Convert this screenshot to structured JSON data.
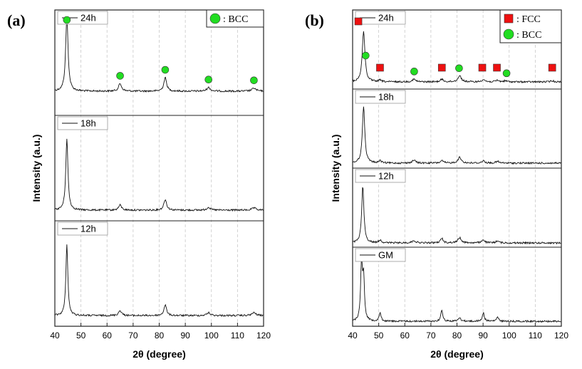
{
  "chart_data": [
    {
      "type": "line",
      "panel_label": "(a)",
      "xlabel": "2θ (degree)",
      "ylabel": "Intensity (a.u.)",
      "xlim": [
        40,
        120
      ],
      "xticks": [
        40,
        50,
        60,
        70,
        80,
        90,
        100,
        110,
        120
      ],
      "grid_x": true,
      "series": [
        {
          "name": "24h",
          "peaks": [
            [
              44.6,
              1.0,
              0.55
            ],
            [
              65.0,
              0.1,
              0.7
            ],
            [
              82.3,
              0.18,
              0.65
            ],
            [
              98.9,
              0.05,
              0.8
            ],
            [
              116.3,
              0.04,
              0.9
            ]
          ]
        },
        {
          "name": "18h",
          "peaks": [
            [
              44.6,
              1.0,
              0.5
            ],
            [
              65.0,
              0.07,
              0.7
            ],
            [
              82.3,
              0.15,
              0.65
            ],
            [
              98.9,
              0.04,
              0.8
            ],
            [
              116.3,
              0.03,
              0.9
            ]
          ]
        },
        {
          "name": "12h",
          "peaks": [
            [
              44.6,
              1.0,
              0.45
            ],
            [
              65.0,
              0.07,
              0.7
            ],
            [
              82.3,
              0.15,
              0.6
            ],
            [
              98.9,
              0.04,
              0.8
            ],
            [
              116.3,
              0.04,
              0.9
            ]
          ]
        }
      ],
      "markers": [
        {
          "series": "24h",
          "phase": "BCC",
          "x": [
            44.6,
            65.0,
            82.3,
            98.9,
            116.3
          ]
        }
      ],
      "legend": [
        {
          "phase": "BCC",
          "symbol": "circle",
          "color": "#22dd22",
          "label": ": BCC"
        }
      ],
      "legend_position": "top-right"
    },
    {
      "type": "line",
      "panel_label": "(b)",
      "xlabel": "2θ (degree)",
      "ylabel": "Intensity (a.u.)",
      "xlim": [
        40,
        120
      ],
      "xticks": [
        40,
        50,
        60,
        70,
        80,
        90,
        100,
        110,
        120
      ],
      "grid_x": true,
      "series": [
        {
          "name": "24h",
          "peaks": [
            [
              44.2,
              1.0,
              0.6
            ],
            [
              50.5,
              0.03,
              0.6
            ],
            [
              63.5,
              0.05,
              0.8
            ],
            [
              74.2,
              0.05,
              0.7
            ],
            [
              81.0,
              0.12,
              0.8
            ],
            [
              90.1,
              0.05,
              0.7
            ],
            [
              95.5,
              0.03,
              0.7
            ],
            [
              98.5,
              0.02,
              0.8
            ],
            [
              116.5,
              0.02,
              0.9
            ]
          ]
        },
        {
          "name": "18h",
          "peaks": [
            [
              44.2,
              1.0,
              0.55
            ],
            [
              50.5,
              0.04,
              0.6
            ],
            [
              63.5,
              0.05,
              0.8
            ],
            [
              74.2,
              0.04,
              0.7
            ],
            [
              81.0,
              0.1,
              0.8
            ],
            [
              90.1,
              0.04,
              0.7
            ],
            [
              95.5,
              0.03,
              0.7
            ]
          ]
        },
        {
          "name": "12h",
          "peaks": [
            [
              43.9,
              1.0,
              0.5
            ],
            [
              50.5,
              0.05,
              0.6
            ],
            [
              63.5,
              0.04,
              0.8
            ],
            [
              74.2,
              0.08,
              0.6
            ],
            [
              81.0,
              0.09,
              0.8
            ],
            [
              90.1,
              0.06,
              0.6
            ],
            [
              95.5,
              0.04,
              0.6
            ]
          ]
        },
        {
          "name": "GM",
          "peaks": [
            [
              43.4,
              1.0,
              0.4
            ],
            [
              44.2,
              0.75,
              0.4
            ],
            [
              50.5,
              0.15,
              0.45
            ],
            [
              74.2,
              0.2,
              0.45
            ],
            [
              81.0,
              0.06,
              0.6
            ],
            [
              90.1,
              0.15,
              0.45
            ],
            [
              95.5,
              0.07,
              0.5
            ]
          ]
        }
      ],
      "markers": [
        {
          "series": "24h",
          "phase": "FCC",
          "x": [
            42.2,
            50.5,
            74.2,
            89.7,
            95.3,
            116.5
          ]
        },
        {
          "series": "24h",
          "phase": "BCC",
          "x": [
            45.0,
            63.6,
            80.8,
            99.0
          ]
        }
      ],
      "legend": [
        {
          "phase": "FCC",
          "symbol": "square",
          "color": "#ee1111",
          "label": ": FCC"
        },
        {
          "phase": "BCC",
          "symbol": "circle",
          "color": "#22dd22",
          "label": ": BCC"
        }
      ],
      "legend_position": "top-right"
    }
  ]
}
